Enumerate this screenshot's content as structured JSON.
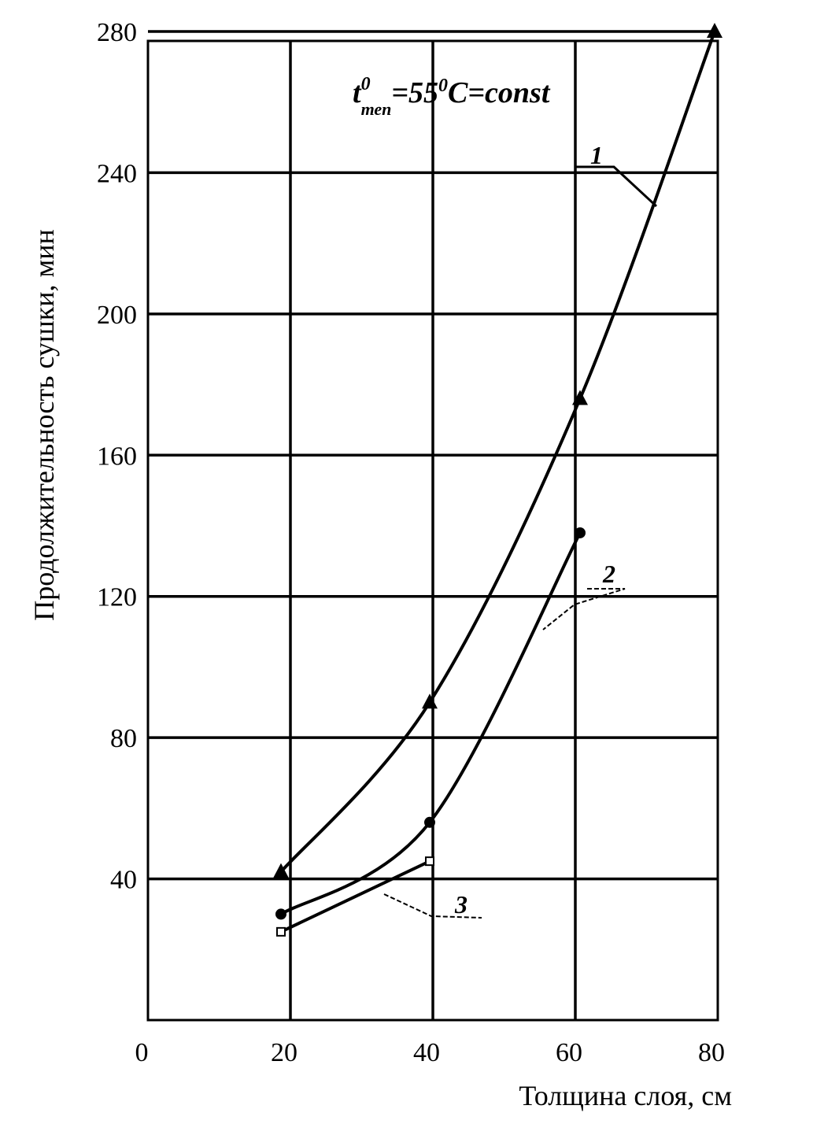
{
  "chart_data": {
    "type": "line",
    "title": "",
    "annotation": {
      "t": "t",
      "sup": "0",
      "sub": "теп",
      "rest": "=55",
      "sup2": "0",
      "tail": "C=const"
    },
    "xlabel": "Толщина слоя, см",
    "ylabel": "Продолжительность сушки, мин",
    "xlim": [
      0,
      80
    ],
    "ylim": [
      0,
      280
    ],
    "x_ticks": [
      0,
      20,
      40,
      60,
      80
    ],
    "y_ticks": [
      40,
      80,
      120,
      160,
      200,
      240,
      280
    ],
    "grid": true,
    "series": [
      {
        "name": "1",
        "marker": "triangle",
        "x": [
          20,
          40,
          60,
          80
        ],
        "y": [
          42,
          90,
          176,
          280
        ]
      },
      {
        "name": "2",
        "marker": "circle",
        "x": [
          20,
          40,
          60
        ],
        "y": [
          30,
          56,
          138
        ]
      },
      {
        "name": "3",
        "marker": "square",
        "x": [
          20,
          40
        ],
        "y": [
          25,
          45
        ]
      }
    ]
  }
}
